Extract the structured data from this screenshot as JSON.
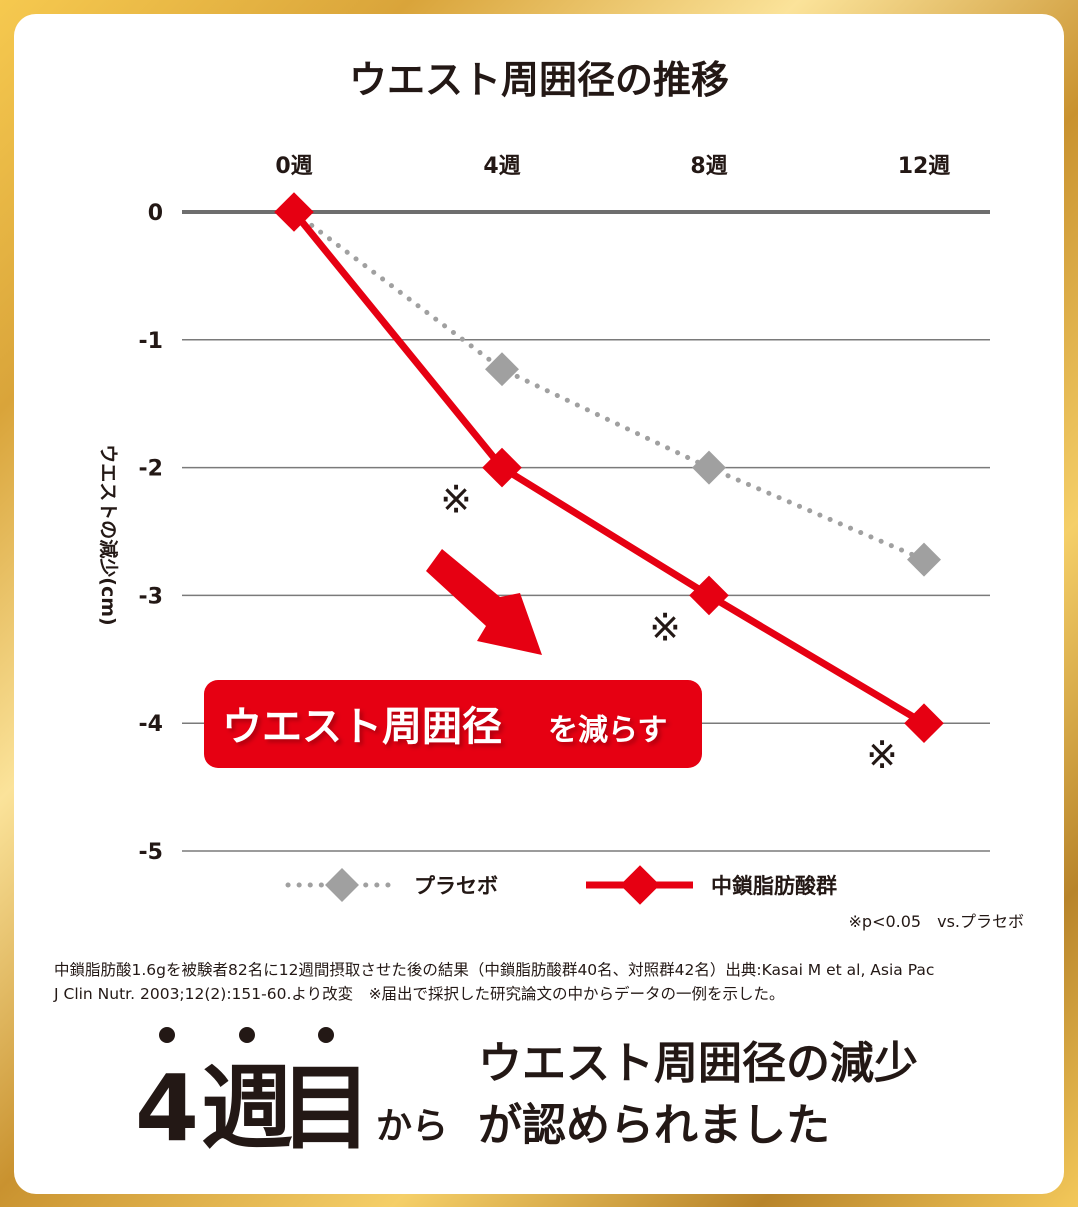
{
  "colors": {
    "placebo": "#a0a0a0",
    "treatment": "#e60012",
    "text": "#231815",
    "grid": "#7a7a7a",
    "zero_line": "#6e6e6e"
  },
  "chart_data": {
    "type": "line",
    "title": "ウエスト周囲径の推移",
    "ylabel": "ウエストの減少(cm)",
    "categories": [
      "0週",
      "4週",
      "8週",
      "12週"
    ],
    "y_ticks": [
      "0",
      "-1",
      "-2",
      "-3",
      "-4",
      "-5"
    ],
    "ylim": [
      -5,
      0
    ],
    "x_axis_position": "top",
    "grid": true,
    "legend_position": "bottom",
    "series": [
      {
        "name": "プラセボ",
        "style": "dotted",
        "marker": "diamond",
        "color": "#a0a0a0",
        "values": [
          0,
          -1.23,
          -2.0,
          -2.72
        ]
      },
      {
        "name": "中鎖脂肪酸群",
        "style": "solid",
        "marker": "diamond",
        "color": "#e60012",
        "values": [
          0,
          -2.0,
          -3.0,
          -4.0
        ]
      }
    ],
    "significance_mark": "※",
    "significance_at": [
      "4週",
      "8週",
      "12週"
    ],
    "significance_note": "※p<0.05　vs.プラセボ",
    "callout_main": "ウエスト周囲径",
    "callout_tail": "を減らす"
  },
  "footnote": {
    "line1": "中鎖脂肪酸1.6gを被験者82名に12週間摂取させた後の結果（中鎖脂肪酸群40名、対照群42名）出典:Kasai M et al, Asia Pac",
    "line2": "J Clin Nutr. 2003;12(2):151-60.より改変　※届出で採択した研究論文の中からデータの一例を示した。"
  },
  "conclusion": {
    "week_number": "4",
    "week_char": "週",
    "me_char": "目",
    "from": "から",
    "line1": "ウエスト周囲径の減少",
    "line2": "が認められました"
  }
}
